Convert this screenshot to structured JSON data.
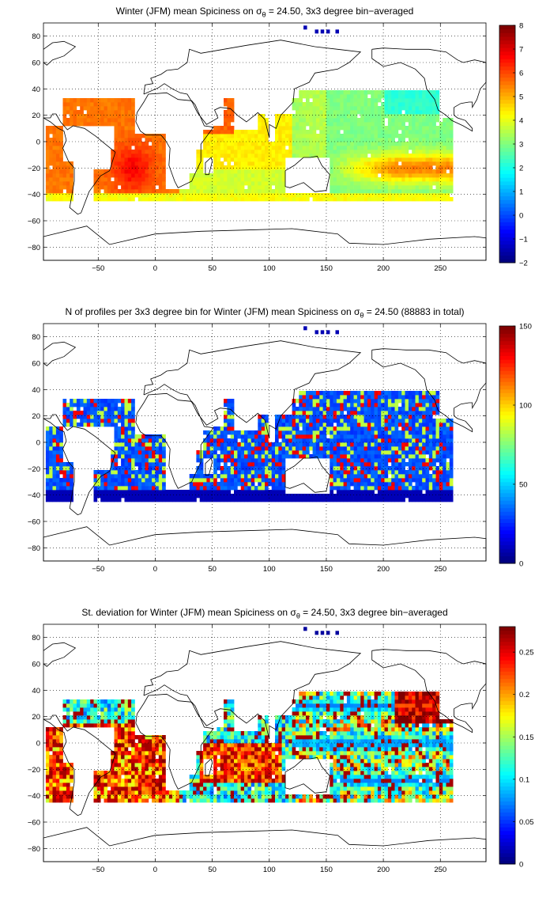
{
  "chart_data": [
    {
      "type": "heatmap",
      "title_pre": "Winter (JFM) mean Spiciness on ",
      "title_sym": "σ",
      "title_sub": "θ",
      "title_post": " = 24.50, 3x3 degree bin−averaged",
      "xticks": [
        "−50",
        "0",
        "50",
        "100",
        "150",
        "200",
        "250"
      ],
      "yticks": [
        "80",
        "60",
        "40",
        "20",
        "0",
        "−20",
        "−40",
        "−60",
        "−80"
      ],
      "xlim": [
        -98,
        290
      ],
      "ylim": [
        -90,
        90
      ],
      "grid": true,
      "colormap": "jet",
      "colorbar": {
        "min": -2,
        "max": 8,
        "ticks": [
          "8",
          "7",
          "6",
          "5",
          "4",
          "3",
          "2",
          "1",
          "0",
          "−1",
          "−2"
        ]
      }
    },
    {
      "type": "heatmap",
      "title_pre": "N of profiles per 3x3 degree bin for Winter (JFM) mean Spiciness on ",
      "title_sym": "σ",
      "title_sub": "θ",
      "title_post": " = 24.50 (88883 in total)",
      "xticks": [
        "−50",
        "0",
        "50",
        "100",
        "150",
        "200",
        "250"
      ],
      "yticks": [
        "80",
        "60",
        "40",
        "20",
        "0",
        "−20",
        "−40",
        "−60",
        "−80"
      ],
      "xlim": [
        -98,
        290
      ],
      "ylim": [
        -90,
        90
      ],
      "grid": true,
      "colormap": "jet",
      "colorbar": {
        "min": 0,
        "max": 150,
        "ticks": [
          "150",
          "100",
          "50",
          "0"
        ]
      }
    },
    {
      "type": "heatmap",
      "title_pre": "St. deviation for Winter (JFM) mean Spiciness on ",
      "title_sym": "σ",
      "title_sub": "θ",
      "title_post": " = 24.50, 3x3 degree bin−averaged",
      "xticks": [
        "−50",
        "0",
        "50",
        "100",
        "150",
        "200",
        "250"
      ],
      "yticks": [
        "80",
        "60",
        "40",
        "20",
        "0",
        "−20",
        "−40",
        "−60",
        "−80"
      ],
      "xlim": [
        -98,
        290
      ],
      "ylim": [
        -90,
        90
      ],
      "grid": true,
      "colormap": "jet",
      "colorbar": {
        "min": 0,
        "max": 0.28,
        "ticks": [
          "0.25",
          "0.2",
          "0.15",
          "0.1",
          "0.05",
          "0"
        ]
      }
    }
  ]
}
